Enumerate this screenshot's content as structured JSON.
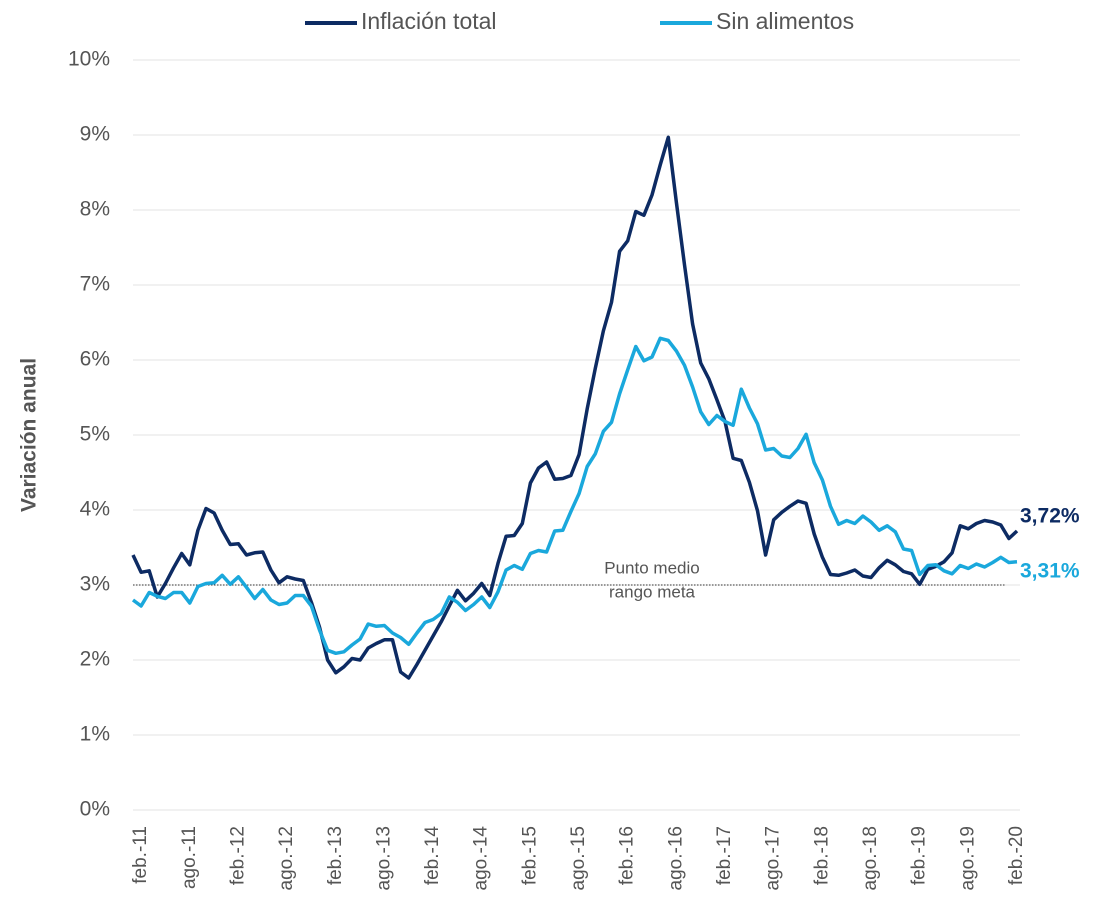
{
  "chart_data": {
    "type": "line",
    "y_axis_label": "Variación anual",
    "categories": [
      null,
      "feb.-11",
      null,
      null,
      null,
      null,
      null,
      "ago.-11",
      null,
      null,
      null,
      null,
      null,
      "feb.-12",
      null,
      null,
      null,
      null,
      null,
      "ago.-12",
      null,
      null,
      null,
      null,
      null,
      "feb.-13",
      null,
      null,
      null,
      null,
      null,
      "ago.-13",
      null,
      null,
      null,
      null,
      null,
      "feb.-14",
      null,
      null,
      null,
      null,
      null,
      "ago.-14",
      null,
      null,
      null,
      null,
      null,
      "feb.-15",
      null,
      null,
      null,
      null,
      null,
      "ago.-15",
      null,
      null,
      null,
      null,
      null,
      "feb.-16",
      null,
      null,
      null,
      null,
      null,
      "ago.-16",
      null,
      null,
      null,
      null,
      null,
      "feb.-17",
      null,
      null,
      null,
      null,
      null,
      "ago.-17",
      null,
      null,
      null,
      null,
      null,
      "feb.-18",
      null,
      null,
      null,
      null,
      null,
      "ago.-18",
      null,
      null,
      null,
      null,
      null,
      "feb.-19",
      null,
      null,
      null,
      null,
      null,
      "ago.-19",
      null,
      null,
      null,
      null,
      null,
      "feb.-20"
    ],
    "series": [
      {
        "name": "Inflación total",
        "color": "#0d2b63",
        "values": [
          3.4,
          3.17,
          3.19,
          2.84,
          3.02,
          3.23,
          3.42,
          3.27,
          3.73,
          4.02,
          3.96,
          3.73,
          3.54,
          3.55,
          3.4,
          3.43,
          3.44,
          3.2,
          3.03,
          3.11,
          3.08,
          3.06,
          2.77,
          2.44,
          2.0,
          1.83,
          1.91,
          2.02,
          2.0,
          2.16,
          2.22,
          2.27,
          2.27,
          1.84,
          1.76,
          1.94,
          2.13,
          2.32,
          2.51,
          2.72,
          2.93,
          2.79,
          2.89,
          3.02,
          2.86,
          3.29,
          3.65,
          3.66,
          3.82,
          4.36,
          4.56,
          4.64,
          4.41,
          4.42,
          4.46,
          4.74,
          5.35,
          5.89,
          6.39,
          6.77,
          7.45,
          7.59,
          7.98,
          7.93,
          8.2,
          8.6,
          8.97,
          8.1,
          7.27,
          6.48,
          5.96,
          5.75,
          5.47,
          5.18,
          4.69,
          4.66,
          4.37,
          3.99,
          3.4,
          3.87,
          3.97,
          4.05,
          4.12,
          4.09,
          3.68,
          3.37,
          3.14,
          3.13,
          3.16,
          3.2,
          3.12,
          3.1,
          3.23,
          3.33,
          3.27,
          3.18,
          3.15,
          3.01,
          3.21,
          3.25,
          3.31,
          3.43,
          3.79,
          3.75,
          3.82,
          3.86,
          3.84,
          3.8,
          3.62,
          3.72
        ],
        "value_labels": [
          null,
          null,
          null,
          null,
          null,
          null,
          null,
          null,
          null,
          null,
          null,
          null,
          null,
          null,
          null,
          null,
          null,
          null,
          null,
          null,
          null,
          null,
          null,
          null,
          null,
          null,
          null,
          null,
          null,
          null,
          null,
          null,
          null,
          null,
          null,
          null,
          null,
          null,
          null,
          null,
          null,
          null,
          null,
          null,
          null,
          null,
          null,
          null,
          null,
          null,
          null,
          null,
          null,
          null,
          null,
          null,
          null,
          null,
          null,
          null,
          null,
          null,
          null,
          null,
          null,
          null,
          null,
          null,
          null,
          null,
          null,
          null,
          null,
          null,
          null,
          null,
          null,
          null,
          null,
          null,
          null,
          null,
          null,
          null,
          null,
          null,
          null,
          null,
          null,
          null,
          null,
          null,
          null,
          null,
          null,
          null,
          null,
          null,
          null,
          null,
          null,
          null,
          null,
          null,
          null,
          null,
          null,
          null,
          null,
          "3,72%"
        ]
      },
      {
        "name": "Sin alimentos",
        "color": "#1aa8dc",
        "values": [
          2.8,
          2.72,
          2.9,
          2.85,
          2.82,
          2.9,
          2.9,
          2.76,
          2.98,
          3.02,
          3.03,
          3.13,
          3.01,
          3.11,
          2.97,
          2.82,
          2.94,
          2.8,
          2.74,
          2.76,
          2.86,
          2.86,
          2.72,
          2.4,
          2.13,
          2.09,
          2.11,
          2.2,
          2.28,
          2.48,
          2.45,
          2.46,
          2.36,
          2.3,
          2.21,
          2.36,
          2.5,
          2.54,
          2.62,
          2.84,
          2.77,
          2.66,
          2.74,
          2.84,
          2.7,
          2.91,
          3.2,
          3.26,
          3.21,
          3.42,
          3.46,
          3.44,
          3.72,
          3.73,
          3.98,
          4.22,
          4.58,
          4.75,
          5.05,
          5.17,
          5.55,
          5.87,
          6.18,
          5.99,
          6.04,
          6.29,
          6.26,
          6.12,
          5.93,
          5.64,
          5.31,
          5.14,
          5.26,
          5.18,
          5.13,
          5.61,
          5.36,
          5.15,
          4.8,
          4.82,
          4.72,
          4.7,
          4.82,
          5.01,
          4.63,
          4.4,
          4.05,
          3.81,
          3.86,
          3.82,
          3.92,
          3.84,
          3.73,
          3.79,
          3.71,
          3.48,
          3.46,
          3.14,
          3.26,
          3.27,
          3.19,
          3.15,
          3.26,
          3.22,
          3.28,
          3.24,
          3.3,
          3.37,
          3.3,
          3.31
        ],
        "value_labels": [
          null,
          null,
          null,
          null,
          null,
          null,
          null,
          null,
          null,
          null,
          null,
          null,
          null,
          null,
          null,
          null,
          null,
          null,
          null,
          null,
          null,
          null,
          null,
          null,
          null,
          null,
          null,
          null,
          null,
          null,
          null,
          null,
          null,
          null,
          null,
          null,
          null,
          null,
          null,
          null,
          null,
          null,
          null,
          null,
          null,
          null,
          null,
          null,
          null,
          null,
          null,
          null,
          null,
          null,
          null,
          null,
          null,
          null,
          null,
          null,
          null,
          null,
          null,
          null,
          null,
          null,
          null,
          null,
          null,
          null,
          null,
          null,
          null,
          null,
          null,
          null,
          null,
          null,
          null,
          null,
          null,
          null,
          null,
          null,
          null,
          null,
          null,
          null,
          null,
          null,
          null,
          null,
          null,
          null,
          null,
          null,
          null,
          null,
          null,
          null,
          null,
          null,
          null,
          null,
          null,
          null,
          null,
          null,
          null,
          "3,31%"
        ]
      }
    ],
    "reference_line": {
      "value": 3,
      "label": [
        "Punto medio",
        "rango meta"
      ]
    },
    "ylim": [
      0,
      10
    ],
    "yticks": [
      {
        "value": 0,
        "label": "0%"
      },
      {
        "value": 1,
        "label": "1%"
      },
      {
        "value": 2,
        "label": "2%"
      },
      {
        "value": 3,
        "label": "3%"
      },
      {
        "value": 4,
        "label": "4%"
      },
      {
        "value": 5,
        "label": "5%"
      },
      {
        "value": 6,
        "label": "6%"
      },
      {
        "value": 7,
        "label": "7%"
      },
      {
        "value": 8,
        "label": "8%"
      },
      {
        "value": 9,
        "label": "9%"
      },
      {
        "value": 10,
        "label": "10%"
      }
    ],
    "grid": true,
    "legend": "top"
  }
}
